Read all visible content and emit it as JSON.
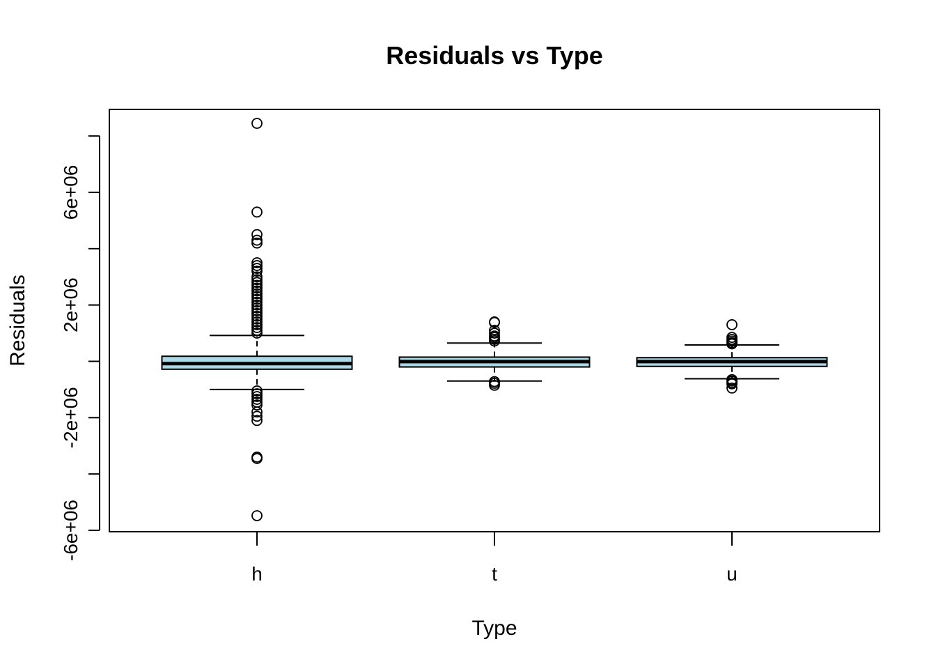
{
  "chart_data": {
    "type": "box",
    "title": "Residuals vs Type",
    "xlabel": "Type",
    "ylabel": "Residuals",
    "categories": [
      "h",
      "t",
      "u"
    ],
    "y_tick_values": [
      -6000000,
      -4000000,
      -2000000,
      0,
      2000000,
      4000000,
      6000000,
      8000000
    ],
    "y_tick_labels": [
      "-6e+06",
      "",
      "-2e+06",
      "",
      "2e+06",
      "",
      "6e+06",
      ""
    ],
    "ylim": [
      -6000000,
      9000000
    ],
    "box_color": "#ADD8E6",
    "boxes": [
      {
        "category": "h",
        "whisker_low": -1000000,
        "q1": -280000,
        "median": -80000,
        "q3": 180000,
        "whisker_high": 920000,
        "outliers": [
          8450000,
          5300000,
          4500000,
          4300000,
          4200000,
          3500000,
          3400000,
          3300000,
          3200000,
          3000000,
          2900000,
          2800000,
          2700000,
          2600000,
          2500000,
          2400000,
          2300000,
          2200000,
          2100000,
          2000000,
          1900000,
          1800000,
          1700000,
          1600000,
          1500000,
          1400000,
          1300000,
          1200000,
          1100000,
          1000000,
          -1050000,
          -1150000,
          -1250000,
          -1350000,
          -1450000,
          -1550000,
          -1800000,
          -1950000,
          -2100000,
          -3400000,
          -3450000,
          -5480000
        ]
      },
      {
        "category": "t",
        "whisker_low": -700000,
        "q1": -200000,
        "median": -10000,
        "q3": 150000,
        "whisker_high": 650000,
        "outliers": [
          1400000,
          1380000,
          1100000,
          1000000,
          900000,
          850000,
          780000,
          720000,
          -720000,
          -780000,
          -850000
        ]
      },
      {
        "category": "u",
        "whisker_low": -620000,
        "q1": -180000,
        "median": -10000,
        "q3": 130000,
        "whisker_high": 580000,
        "outliers": [
          1300000,
          850000,
          780000,
          720000,
          660000,
          620000,
          -650000,
          -700000,
          -760000,
          -800000,
          -950000
        ]
      }
    ]
  }
}
